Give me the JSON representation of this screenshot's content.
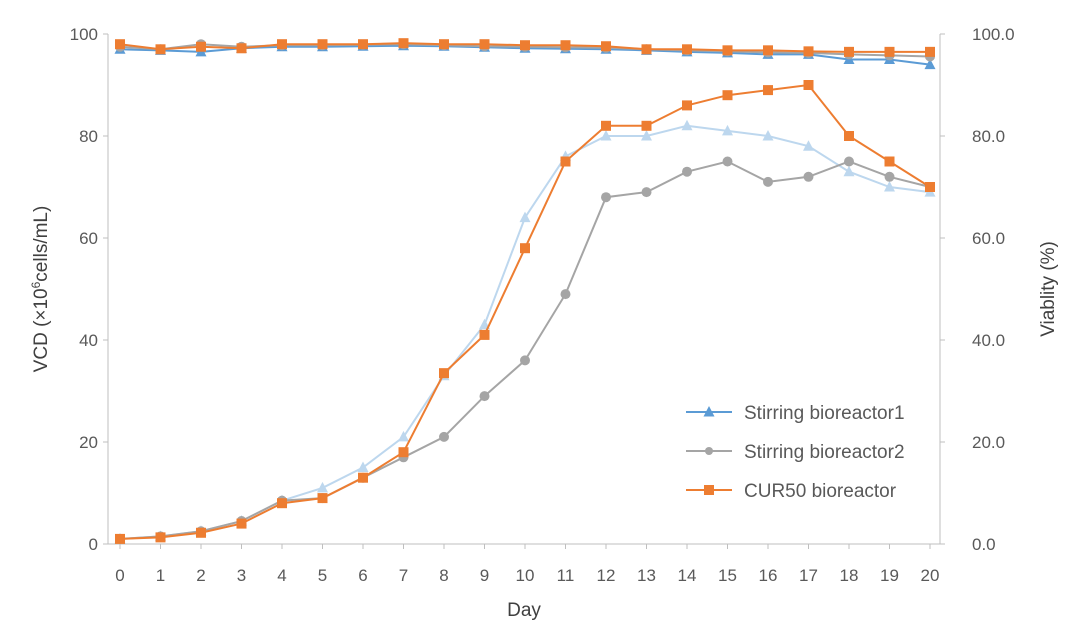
{
  "chart_data": {
    "type": "line",
    "xlabel": "Day",
    "ylabel_left_prefix": "VCD (×10",
    "ylabel_left_exp": "6",
    "ylabel_left_suffix": "cells/mL)",
    "ylabel_right": "Viablity (%)",
    "x": [
      0,
      1,
      2,
      3,
      4,
      5,
      6,
      7,
      8,
      9,
      10,
      11,
      12,
      13,
      14,
      15,
      16,
      17,
      18,
      19,
      20
    ],
    "x_ticks": [
      "0",
      "1",
      "2",
      "3",
      "4",
      "5",
      "6",
      "7",
      "8",
      "9",
      "10",
      "11",
      "12",
      "13",
      "14",
      "15",
      "16",
      "17",
      "18",
      "19",
      "20"
    ],
    "ylim_left": [
      0,
      100
    ],
    "ylim_right": [
      0,
      100
    ],
    "y_ticks_left": [
      "0",
      "20",
      "40",
      "60",
      "80",
      "100"
    ],
    "y_ticks_right": [
      "0.0",
      "20.0",
      "40.0",
      "60.0",
      "80.0",
      "100.0"
    ],
    "grid": false,
    "legend_position": "right-bottom",
    "series": [
      {
        "name": "Stirring bioreactor1",
        "marker": "triangle",
        "vcd_color": "#bdd7ee",
        "viability_color": "#5b9bd5",
        "vcd": [
          1.0,
          1.5,
          2.5,
          4.5,
          8.5,
          11,
          15,
          21,
          33,
          43,
          64,
          76,
          80,
          80,
          82,
          81,
          80,
          78,
          73,
          70,
          69
        ],
        "viability": [
          97,
          96.8,
          96.5,
          97.2,
          97.5,
          97.5,
          97.6,
          97.7,
          97.6,
          97.4,
          97.2,
          97.1,
          97.0,
          96.8,
          96.5,
          96.3,
          96.0,
          96.0,
          95.0,
          95.0,
          94.0
        ]
      },
      {
        "name": "Stirring bioreactor2",
        "marker": "circle",
        "vcd_color": "#a5a5a5",
        "viability_color": "#a5a5a5",
        "vcd": [
          1.0,
          1.5,
          2.5,
          4.5,
          8.5,
          9.0,
          13,
          17,
          21,
          29,
          36,
          49,
          68,
          69,
          73,
          75,
          71,
          72,
          75,
          72,
          70
        ],
        "viability": [
          97.5,
          97.0,
          98.0,
          97.5,
          97.8,
          97.8,
          97.9,
          98.0,
          97.8,
          97.6,
          97.5,
          97.4,
          97.3,
          97.0,
          96.8,
          96.6,
          96.4,
          96.3,
          96.0,
          95.8,
          95.6
        ]
      },
      {
        "name": "CUR50 bioreactor",
        "marker": "square",
        "vcd_color": "#ed7d31",
        "viability_color": "#ed7d31",
        "vcd": [
          1.0,
          1.3,
          2.2,
          4.0,
          8.0,
          9.0,
          13,
          18,
          33.5,
          41,
          58,
          75,
          82,
          82,
          86,
          88,
          89,
          90,
          80,
          75,
          70
        ],
        "viability": [
          98,
          97,
          97.5,
          97.2,
          98,
          98,
          98,
          98.2,
          98,
          98,
          97.8,
          97.8,
          97.6,
          97,
          97,
          96.8,
          96.8,
          96.6,
          96.5,
          96.5,
          96.5
        ]
      }
    ]
  }
}
